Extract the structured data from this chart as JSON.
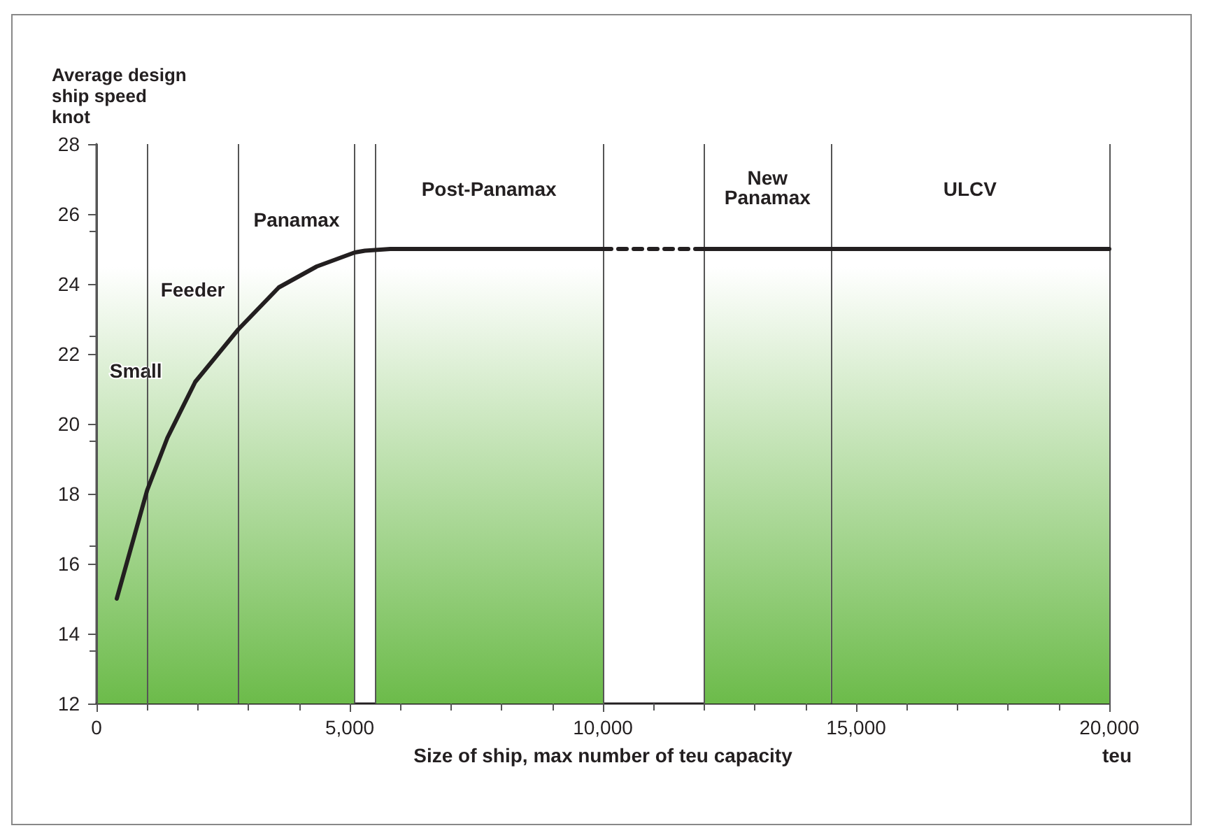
{
  "chart_data": {
    "type": "line",
    "xlabel": "Size of ship, max number of teu capacity",
    "ylabel": "Average design\nship speed\nknot",
    "annotations": [
      "teu"
    ],
    "xlim": [
      0,
      20000
    ],
    "xticks": [
      0,
      {
        "value": 5000,
        "label": "5,000"
      },
      {
        "value": 10000,
        "label": "10,000"
      },
      {
        "value": 15000,
        "label": "15,000"
      },
      {
        "value": 20000,
        "label": "20,000"
      }
    ],
    "ylim": [
      12,
      28
    ],
    "yticks": [
      12,
      14,
      16,
      18,
      20,
      22,
      24,
      26,
      28
    ],
    "marker": "none",
    "series": [
      {
        "color": "#231f20",
        "line_style": "solid",
        "x": [
          400,
          1000,
          1400,
          1950,
          2800,
          3600,
          4350,
          5100,
          5300,
          5800,
          10000
        ],
        "values": [
          15.0,
          18.1,
          19.6,
          21.2,
          22.7,
          23.9,
          24.5,
          24.9,
          24.95,
          25.0,
          25.0
        ]
      },
      {
        "color": "#231f20",
        "line_style": "dashed",
        "x": [
          10000,
          12000
        ],
        "values": [
          25.0,
          25.0
        ]
      },
      {
        "color": "#231f20",
        "line_style": "solid",
        "x": [
          12000,
          20000
        ],
        "values": [
          25.0,
          25.0
        ]
      }
    ],
    "bands": [
      {
        "axis": "x",
        "from": 0,
        "to": 1000,
        "label": "Small",
        "color": "#6cbb4a"
      },
      {
        "axis": "x",
        "from": 1000,
        "to": 2800,
        "label": "Feeder",
        "color": "#6cbb4a"
      },
      {
        "axis": "x",
        "from": 2800,
        "to": 5100,
        "label": "Panamax",
        "color": "#6cbb4a"
      },
      {
        "axis": "x",
        "from": 5500,
        "to": 10000,
        "label": "Post-Panamax",
        "color": "#6cbb4a"
      },
      {
        "axis": "x",
        "from": 12000,
        "to": 14500,
        "label": "New\nPanamax",
        "color": "#6cbb4a"
      },
      {
        "axis": "x",
        "from": 14500,
        "to": 20000,
        "label": "ULCV",
        "color": "#6cbb4a"
      }
    ]
  }
}
